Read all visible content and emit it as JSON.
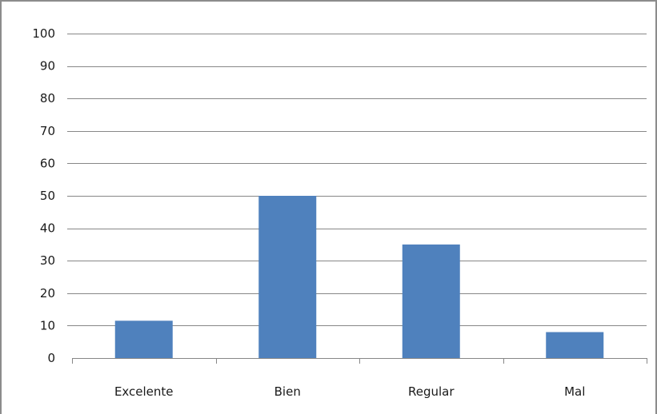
{
  "chart_data": {
    "type": "bar",
    "categories": [
      "Excelente",
      "Bien",
      "Regular",
      "Mal"
    ],
    "values": [
      11.5,
      50,
      35,
      8
    ],
    "title": "",
    "xlabel": "",
    "ylabel": "",
    "ylim": [
      0,
      100
    ],
    "yticks": [
      0,
      10,
      20,
      30,
      40,
      50,
      60,
      70,
      80,
      90,
      100
    ],
    "grid": "horizontal",
    "legend": "none",
    "bar_color": "#4f81bd",
    "grid_color": "#878787"
  }
}
